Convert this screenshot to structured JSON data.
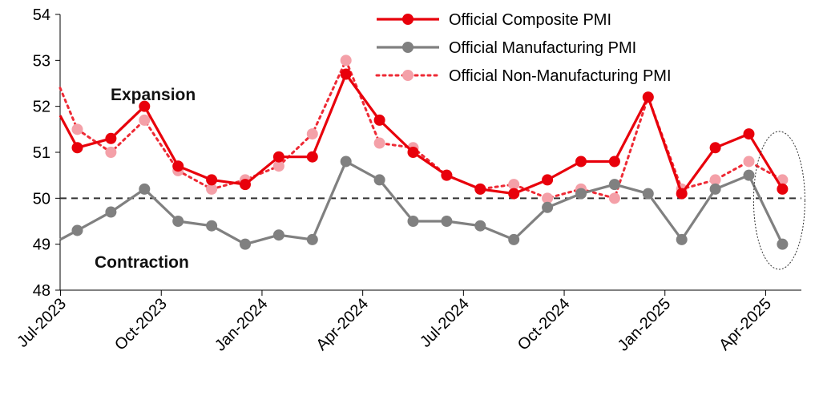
{
  "chart_data": {
    "type": "line",
    "ylim": [
      48,
      54
    ],
    "yticks": [
      "48",
      "49",
      "50",
      "51",
      "52",
      "53",
      "54"
    ],
    "x_tick_labels": [
      "Jul-2023",
      "Oct-2023",
      "Jan-2024",
      "Apr-2024",
      "Jul-2024",
      "Oct-2024",
      "Jan-2025",
      "Apr-2025"
    ],
    "categories": [
      "Jul-2023",
      "Aug-2023",
      "Sep-2023",
      "Oct-2023",
      "Nov-2023",
      "Dec-2023",
      "Jan-2024",
      "Feb-2024",
      "Mar-2024",
      "Apr-2024",
      "May-2024",
      "Jun-2024",
      "Jul-2024",
      "Aug-2024",
      "Sep-2024",
      "Oct-2024",
      "Nov-2024",
      "Dec-2024",
      "Jan-2025",
      "Feb-2025",
      "Mar-2025",
      "Apr-2025"
    ],
    "reference_line": 50,
    "grid": false,
    "legend_position": "top-right",
    "series": [
      {
        "name": "Official Composite PMI",
        "color": "#e8000b",
        "style": "solid",
        "values": [
          51.1,
          51.3,
          52.0,
          50.7,
          50.4,
          50.3,
          50.9,
          50.9,
          52.7,
          51.7,
          51.0,
          50.5,
          50.2,
          50.1,
          50.4,
          50.8,
          50.8,
          52.2,
          50.1,
          51.1,
          51.4,
          50.2
        ],
        "start_value": 51.8
      },
      {
        "name": "Official Manufacturing PMI",
        "color": "#808080",
        "style": "solid",
        "values": [
          49.3,
          49.7,
          50.2,
          49.5,
          49.4,
          49.0,
          49.2,
          49.1,
          50.8,
          50.4,
          49.5,
          49.5,
          49.4,
          49.1,
          49.8,
          50.1,
          50.3,
          50.1,
          49.1,
          50.2,
          50.5,
          49.0
        ],
        "start_value": 49.1
      },
      {
        "name": "Official Non-Manufacturing PMI",
        "color": "#f4a0a8",
        "line_color": "#ee2a35",
        "style": "dotted",
        "values": [
          51.5,
          51.0,
          51.7,
          50.6,
          50.2,
          50.4,
          50.7,
          51.4,
          53.0,
          51.2,
          51.1,
          50.5,
          50.2,
          50.3,
          50.0,
          50.2,
          50.0,
          52.2,
          50.2,
          50.4,
          50.8,
          50.4
        ],
        "start_value": 52.4
      }
    ],
    "annotations": [
      "Expansion",
      "Contraction"
    ],
    "highlight": "ellipse around Apr-2025"
  }
}
